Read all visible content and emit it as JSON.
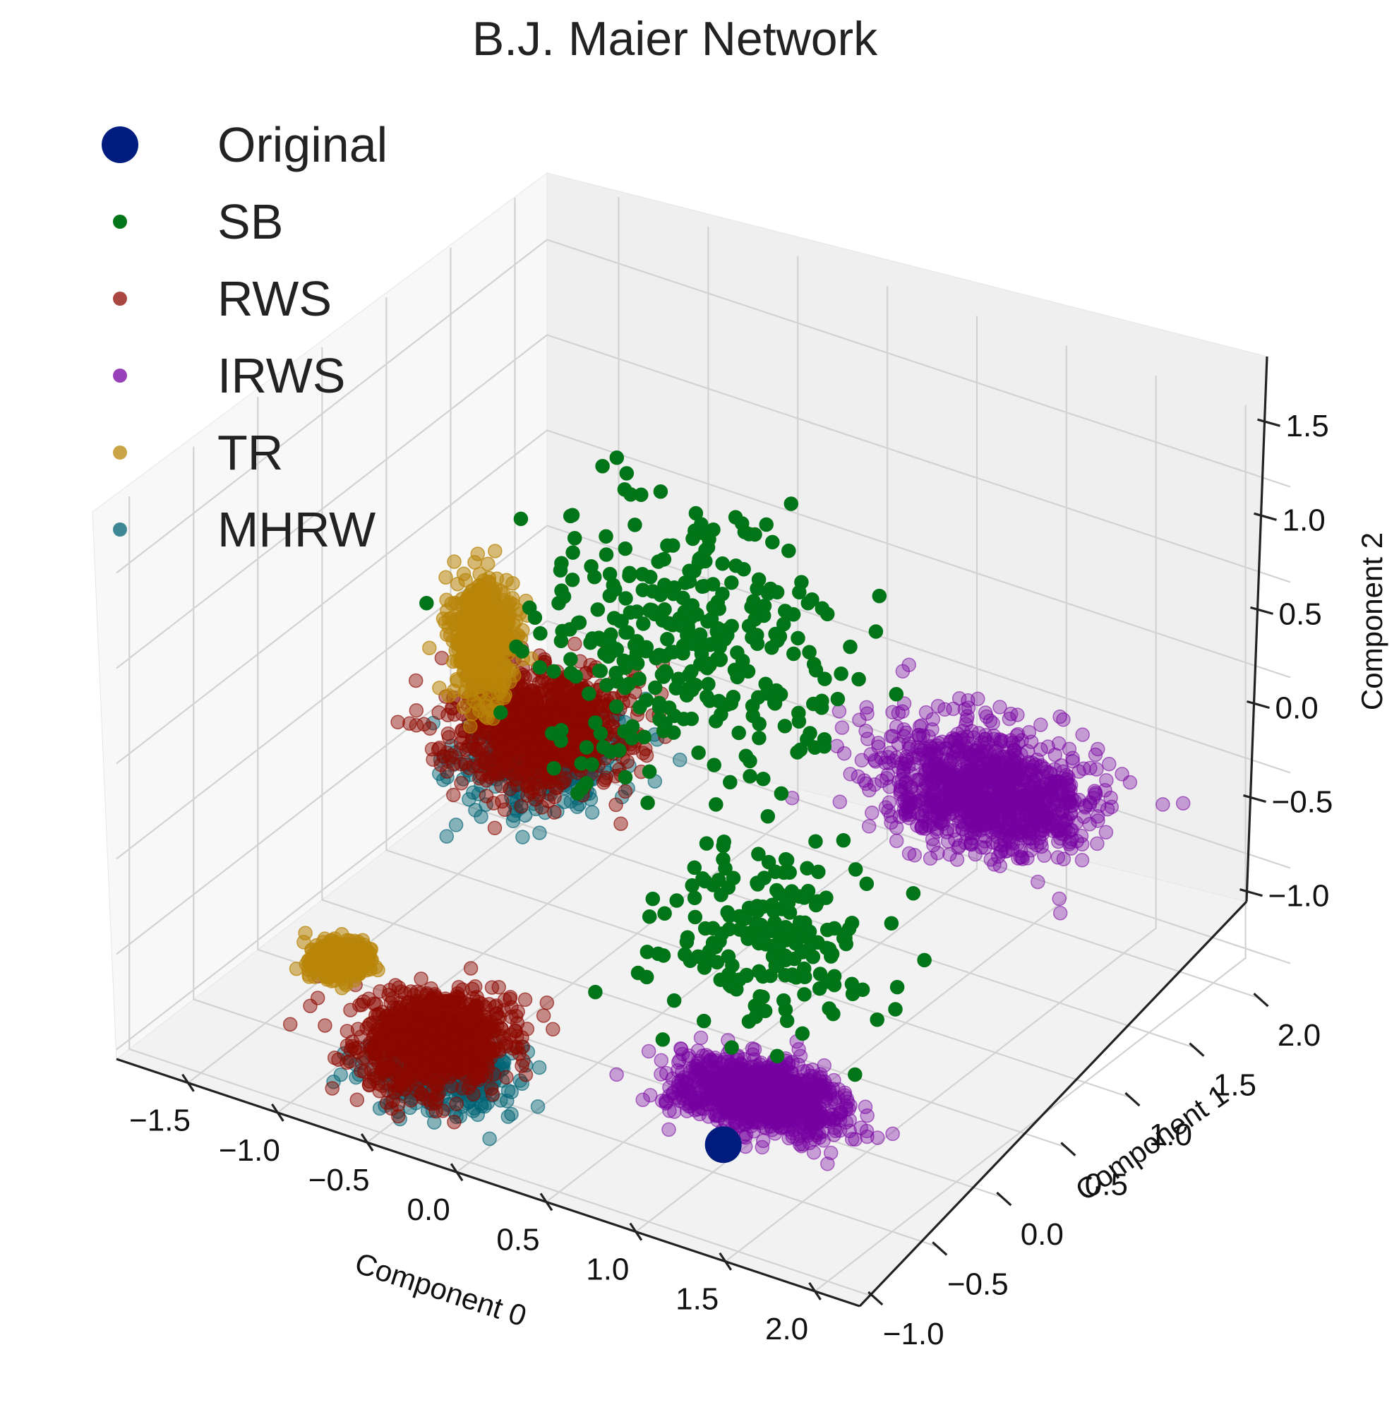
{
  "chart_data": {
    "type": "scatter",
    "projection": "3d",
    "title": "B.J. Maier Network",
    "xlabel": "Component 0",
    "ylabel": "Component 1",
    "zlabel": "Component 2",
    "xlim": [
      -1.9,
      2.25
    ],
    "ylim": [
      -1.1,
      2.25
    ],
    "zlim": [
      -1.05,
      1.85
    ],
    "xticks": [
      -1.5,
      -1.0,
      -0.5,
      0.0,
      0.5,
      1.0,
      1.5,
      2.0
    ],
    "yticks": [
      -1.0,
      -0.5,
      0.0,
      0.5,
      1.0,
      1.5,
      2.0
    ],
    "zticks": [
      -1.0,
      -0.5,
      0.0,
      0.5,
      1.0,
      1.5
    ],
    "xtick_labels": [
      "−1.5",
      "−1.0",
      "−0.5",
      "0.0",
      "0.5",
      "1.0",
      "1.5",
      "2.0"
    ],
    "ytick_labels": [
      "−1.0",
      "−0.5",
      "0.0",
      "0.5",
      "1.0",
      "1.5",
      "2.0"
    ],
    "ztick_labels": [
      "−1.0",
      "−0.5",
      "0.0",
      "0.5",
      "1.0",
      "1.5"
    ],
    "grid": true,
    "legend_position": "upper-left",
    "series": [
      {
        "name": "Original",
        "color": "#001C7F",
        "marker_size": "large",
        "points": [
          [
            0.95,
            -0.35,
            -1.0
          ]
        ]
      },
      {
        "name": "SB",
        "color": "#017517",
        "alpha": 1.0,
        "clusters": [
          {
            "center": [
              -0.2,
              1.0,
              0.55
            ],
            "spread": [
              0.7,
              0.55,
              0.55
            ],
            "count": 330,
            "approximate": true
          },
          {
            "center": [
              0.6,
              0.5,
              -0.45
            ],
            "spread": [
              0.5,
              0.4,
              0.35
            ],
            "count": 190,
            "approximate": true
          }
        ]
      },
      {
        "name": "RWS",
        "color": "#8C0800",
        "alpha": 0.45,
        "clusters": [
          {
            "center": [
              -1.0,
              0.95,
              -0.1
            ],
            "spread": [
              0.38,
              0.35,
              0.18
            ],
            "count": 900,
            "approximate": true
          },
          {
            "center": [
              -0.55,
              -0.5,
              -0.85
            ],
            "spread": [
              0.32,
              0.3,
              0.12
            ],
            "count": 900,
            "approximate": true
          }
        ]
      },
      {
        "name": "IRWS",
        "color": "#7600A1",
        "alpha": 0.35,
        "clusters": [
          {
            "center": [
              1.2,
              1.35,
              0.05
            ],
            "spread": [
              0.5,
              0.3,
              0.2
            ],
            "count": 1100,
            "approximate": true
          },
          {
            "center": [
              0.95,
              -0.05,
              -0.9
            ],
            "spread": [
              0.38,
              0.22,
              0.07
            ],
            "count": 1100,
            "approximate": true
          }
        ]
      },
      {
        "name": "TR",
        "color": "#B8850A",
        "alpha": 0.55,
        "clusters": [
          {
            "center": [
              -1.4,
              1.05,
              0.2
            ],
            "spread": [
              0.13,
              0.12,
              0.25
            ],
            "count": 600,
            "approximate": true
          },
          {
            "center": [
              -1.05,
              -0.55,
              -0.55
            ],
            "spread": [
              0.12,
              0.1,
              0.05
            ],
            "count": 500,
            "approximate": true
          }
        ]
      },
      {
        "name": "MHRW",
        "color": "#006374",
        "alpha": 0.45,
        "clusters": [
          {
            "center": [
              -1.0,
              0.95,
              -0.25
            ],
            "spread": [
              0.36,
              0.34,
              0.16
            ],
            "count": 400,
            "approximate": true
          },
          {
            "center": [
              -0.45,
              -0.55,
              -0.95
            ],
            "spread": [
              0.33,
              0.28,
              0.08
            ],
            "count": 400,
            "approximate": true
          }
        ]
      }
    ]
  }
}
